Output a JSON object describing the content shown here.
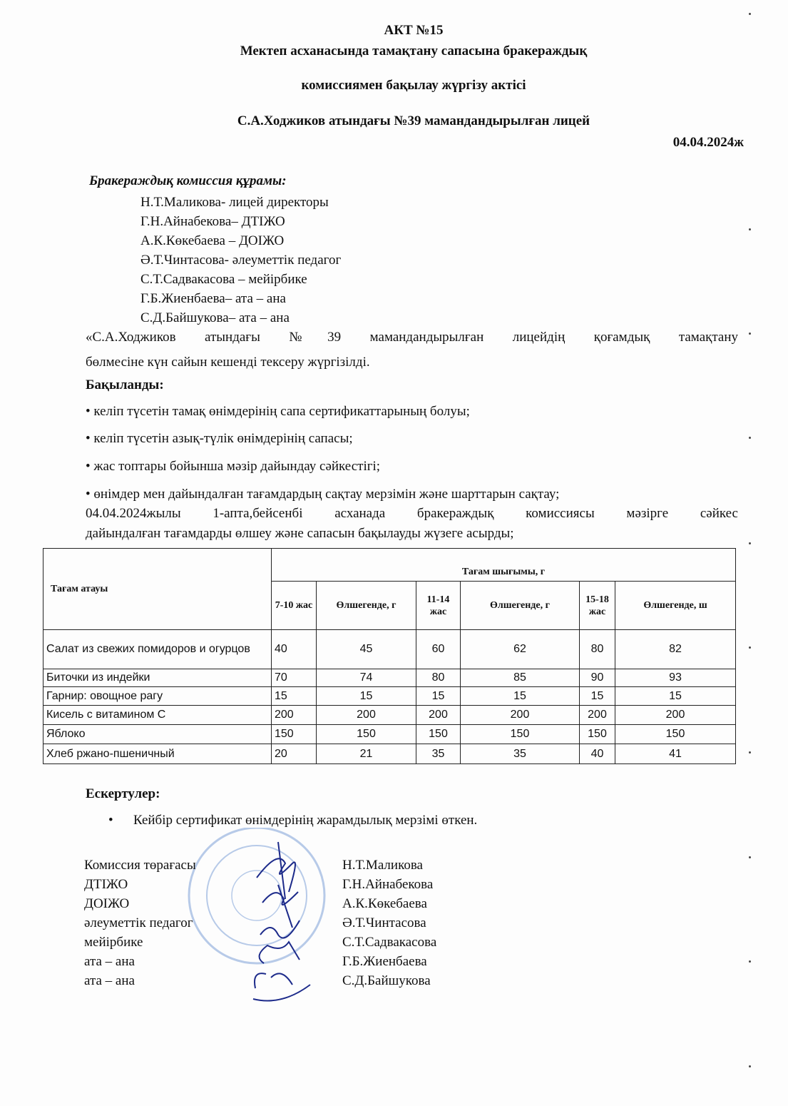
{
  "header": {
    "title": "АКТ №15",
    "line1": "Мектеп асханасында тамақтану сапасына бракераждық",
    "line2": "комиссиямен бақылау жүргізу актісі",
    "school": "С.А.Ходжиков атындағы №39 мамандандырылған лицей",
    "date": "04.04.2024ж"
  },
  "commission": {
    "heading": "Бракераждық комиссия құрамы:",
    "members": [
      "Н.Т.Маликова- лицей директоры",
      "Г.Н.Айнабекова– ДТІЖО",
      "А.К.Көкебаева – ДОІЖО",
      "Ә.Т.Чинтасова- әлеуметтік педагог",
      "С.Т.Садвакасова – мейірбике",
      "Г.Б.Жиенбаева– ата – ана",
      "С.Д.Байшукова– ата – ана"
    ]
  },
  "intro": {
    "line1": "«С.А.Ходжиков атындағы №39 мамандандырылған лицейдің қоғамдық тамақтану",
    "line2": "бөлмесіне күн сайын кешенді тексеру жүргізілді."
  },
  "checked": {
    "heading": "Бақыланды:",
    "items": [
      "• келіп түсетін тамақ өнімдерінің сапа сертификаттарының болуы;",
      "• келіп түсетін азық-түлік өнімдерінің сапасы;",
      "• жас топтары бойынша мәзір дайындау сәйкестігі;",
      "• өнімдер мен дайындалған тағамдардың сақтау мерзімін және шарттарын сақтау;"
    ]
  },
  "summary": {
    "line1": "04.04.2024жылы 1-апта,бейсенбі асханада бракераждық комиссиясы мәзірге сәйкес",
    "line2": "дайындалған тағамдарды өлшеу және сапасын бақылауды жүзеге асырды;"
  },
  "table": {
    "col_name": "Тағам атауы",
    "group": "Тағам шығымы, г",
    "cols": [
      "7-10 жас",
      "Өлшегенде, г",
      "11-14 жас",
      "Өлшегенде, г",
      "15-18 жас",
      "Өлшегенде, ш"
    ],
    "rows": [
      {
        "name": "Салат из свежих помидоров и огурцов",
        "v": [
          "40",
          "45",
          "60",
          "62",
          "80",
          "82"
        ]
      },
      {
        "name": "Биточки из индейки",
        "v": [
          "70",
          "74",
          "80",
          "85",
          "90",
          "93"
        ]
      },
      {
        "name": "Гарнир: овощное рагу",
        "v": [
          "15",
          "15",
          "15",
          "15",
          "15",
          "15"
        ]
      },
      {
        "name": "Кисель с витамином С",
        "v": [
          "200",
          "200",
          "200",
          "200",
          "200",
          "200"
        ]
      },
      {
        "name": "Яблоко",
        "v": [
          "150",
          "150",
          "150",
          "150",
          "150",
          "150"
        ]
      },
      {
        "name": "Хлеб ржано-пшеничный",
        "v": [
          "20",
          "21",
          "35",
          "35",
          "40",
          "41"
        ]
      }
    ]
  },
  "notes": {
    "heading": "Ескертулер:",
    "items": [
      "Кейбір сертификат өнімдерінің жарамдылық мерзімі өткен."
    ]
  },
  "signatures": [
    {
      "role": "Комиссия төрағасы",
      "name": "Н.Т.Маликова"
    },
    {
      "role": "ДТІЖО",
      "name": "Г.Н.Айнабекова"
    },
    {
      "role": "ДОІЖО",
      "name": "А.К.Көкебаева"
    },
    {
      "role": "әлеуметтік педагог",
      "name": "Ә.Т.Чинтасова"
    },
    {
      "role": "мейірбике",
      "name": "С.Т.Садвакасова"
    },
    {
      "role": "ата – ана",
      "name": "Г.Б.Жиенбаева"
    },
    {
      "role": "ата – ана",
      "name": "С.Д.Байшукова"
    }
  ],
  "colors": {
    "stamp": "#7fa2d8",
    "signature": "#1c2a8a"
  }
}
